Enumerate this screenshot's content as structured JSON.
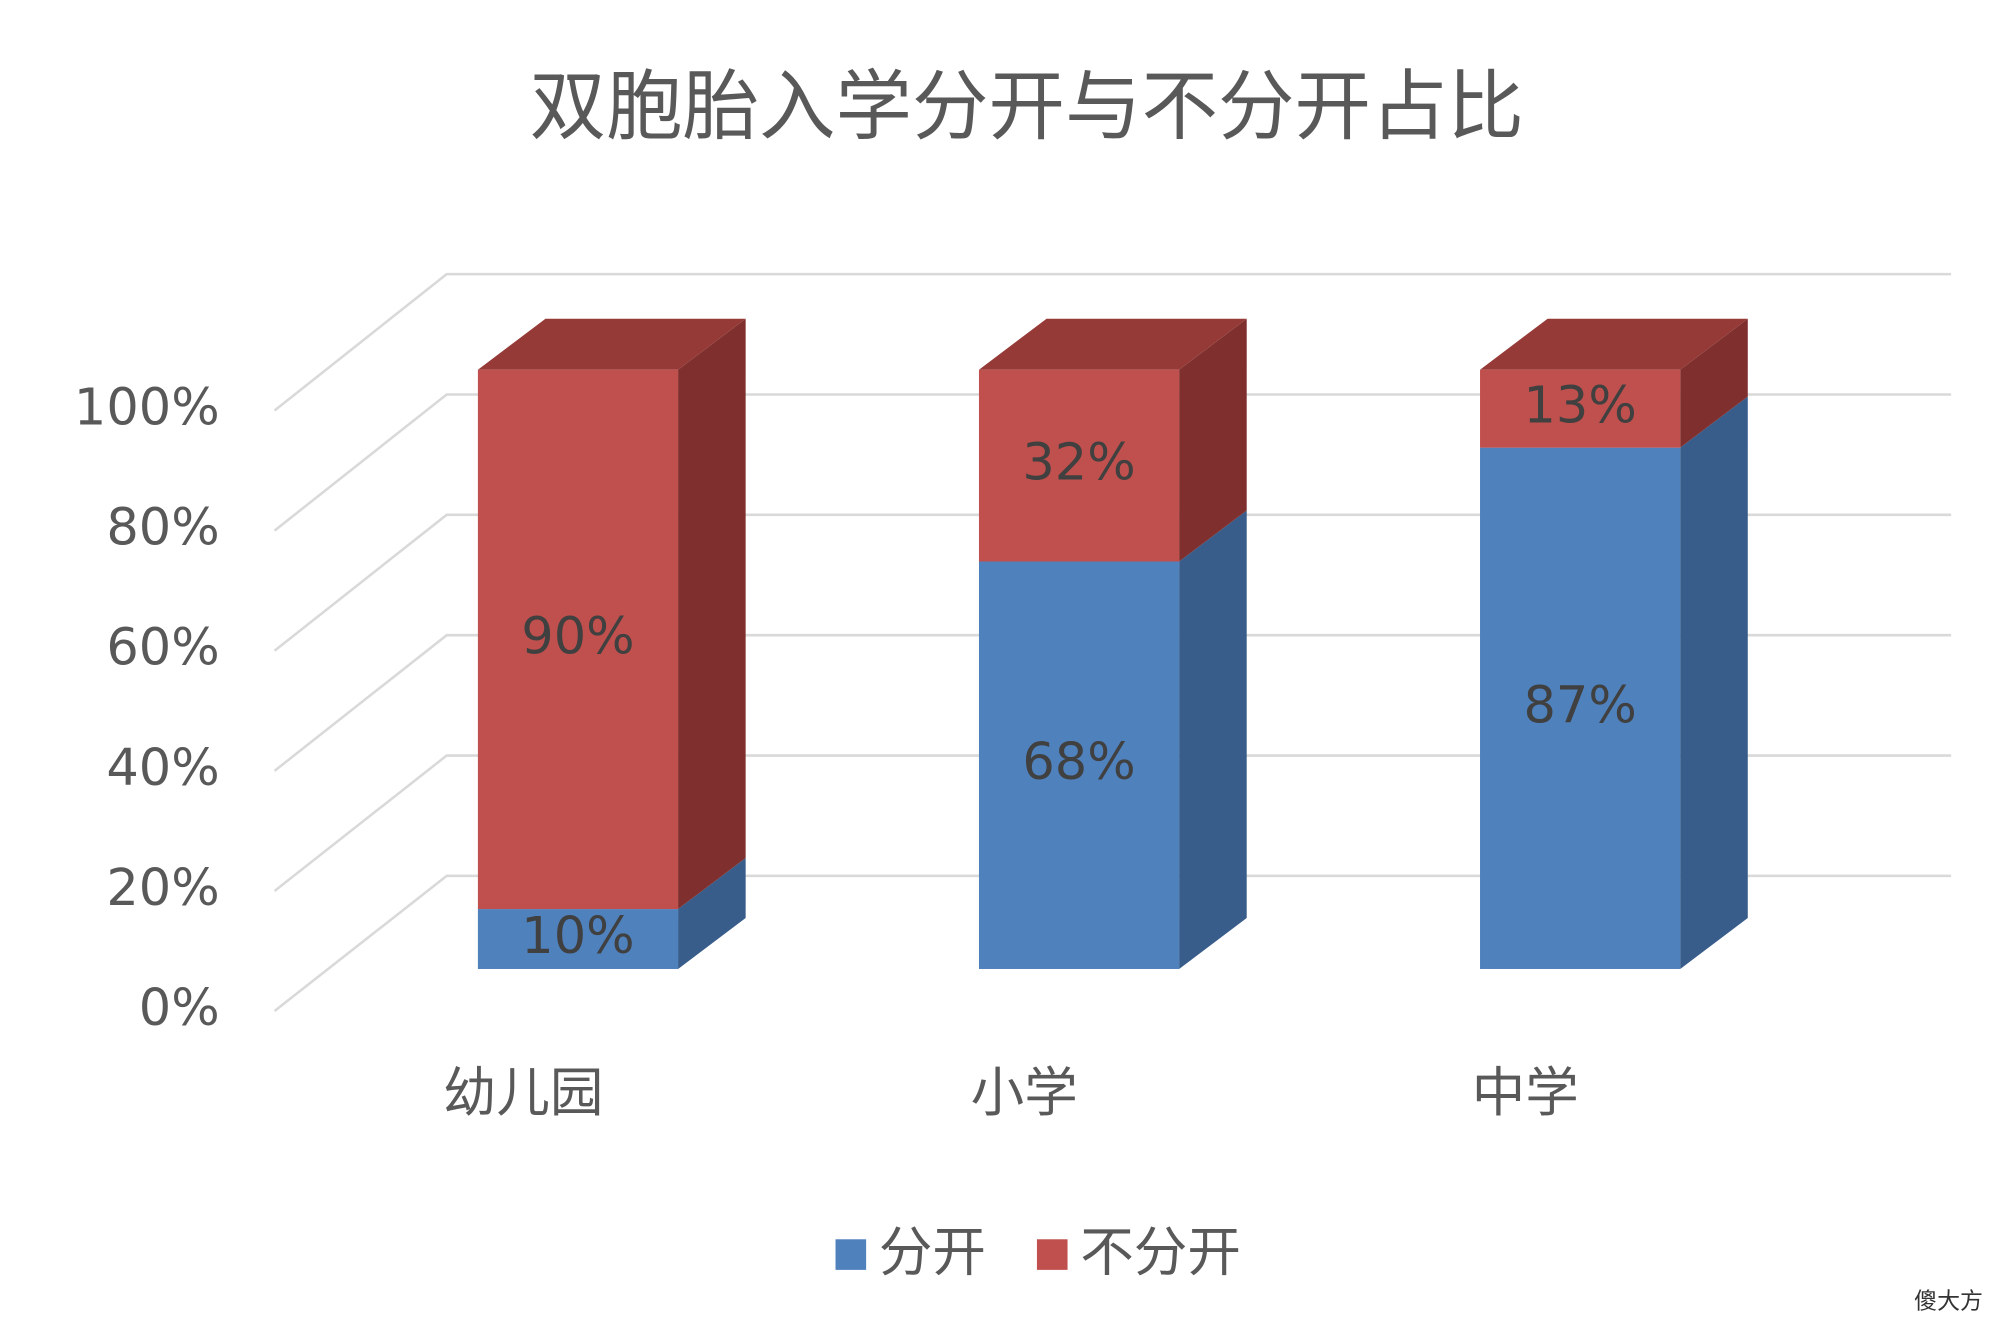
{
  "chart_data": {
    "type": "bar3d_stacked",
    "title": "双胞胎入学分开与不分开占比",
    "categories": [
      "幼儿园",
      "小学",
      "中学"
    ],
    "series": [
      {
        "name": "分开",
        "color": "#4f81bd",
        "side_color": "#385d8a",
        "top_color": "#6a93c8",
        "values": [
          10,
          68,
          87
        ],
        "value_labels": [
          "10%",
          "68%",
          "87%"
        ]
      },
      {
        "name": "不分开",
        "color": "#c0504d",
        "side_color": "#7f302e",
        "top_color": "#953a37",
        "values": [
          90,
          32,
          13
        ],
        "value_labels": [
          "90%",
          "32%",
          "13%"
        ]
      }
    ],
    "ylim": [
      0,
      100
    ],
    "yticks": [
      {
        "value": 0,
        "label": "0%"
      },
      {
        "value": 20,
        "label": "20%"
      },
      {
        "value": 40,
        "label": "40%"
      },
      {
        "value": 60,
        "label": "60%"
      },
      {
        "value": 80,
        "label": "80%"
      },
      {
        "value": 100,
        "label": "100%"
      }
    ],
    "grid": true,
    "legend": "bottom",
    "watermark": "傻大方"
  }
}
